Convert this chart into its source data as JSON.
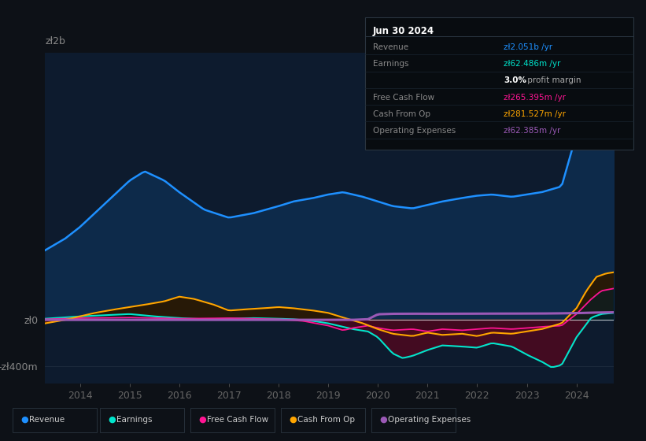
{
  "bg_color": "#0d1117",
  "plot_bg_color": "#0d1b2e",
  "ylim": [
    -550000000,
    2300000000
  ],
  "xlim": [
    2013.3,
    2024.75
  ],
  "yticks": [
    -400000000,
    0
  ],
  "ytick_labels": [
    "-zł400m",
    "zł0"
  ],
  "y2b_label": "zł2b",
  "xticks": [
    2014,
    2015,
    2016,
    2017,
    2018,
    2019,
    2020,
    2021,
    2022,
    2023,
    2024
  ],
  "colors": {
    "revenue": "#1e90ff",
    "earnings": "#00e5cc",
    "free_cash_flow": "#ff1493",
    "cash_from_op": "#ffa500",
    "operating_expenses": "#9b59b6"
  },
  "legend": [
    {
      "label": "Revenue",
      "color": "#1e90ff"
    },
    {
      "label": "Earnings",
      "color": "#00e5cc"
    },
    {
      "label": "Free Cash Flow",
      "color": "#ff1493"
    },
    {
      "label": "Cash From Op",
      "color": "#ffa500"
    },
    {
      "label": "Operating Expenses",
      "color": "#9b59b6"
    }
  ],
  "info_box": {
    "date": "Jun 30 2024",
    "rows": [
      {
        "label": "Revenue",
        "value": "zł2.051b /yr",
        "value_color": "#1e90ff"
      },
      {
        "label": "Earnings",
        "value": "zł62.486m /yr",
        "value_color": "#00e5cc"
      },
      {
        "label": "",
        "value": "3.0%",
        "value2": " profit margin",
        "value_color": "#ffffff",
        "value2_color": "#aaaaaa"
      },
      {
        "label": "Free Cash Flow",
        "value": "zł265.395m /yr",
        "value_color": "#ff1493"
      },
      {
        "label": "Cash From Op",
        "value": "zł281.527m /yr",
        "value_color": "#ffa500"
      },
      {
        "label": "Operating Expenses",
        "value": "zł62.385m /yr",
        "value_color": "#9b59b6"
      }
    ]
  }
}
